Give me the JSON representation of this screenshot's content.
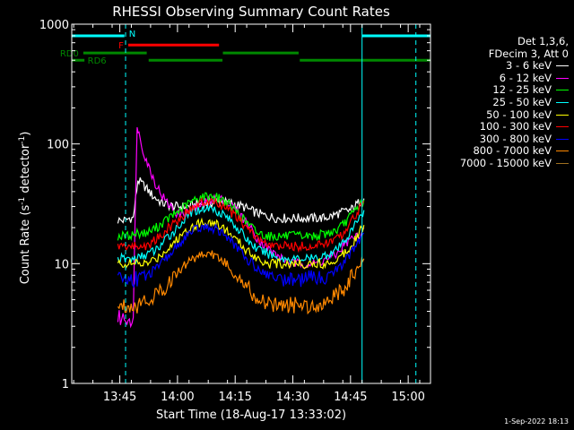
{
  "chart_data": {
    "type": "line",
    "title": "RHESSI Observing Summary Count Rates",
    "xlabel": "Start Time (18-Aug-17 13:33:02)",
    "ylabel_parts": [
      "Count Rate (s",
      "-1",
      " detector",
      "-1",
      ")"
    ],
    "y_scale": "log",
    "ylim": [
      1,
      1000
    ],
    "y_ticks": [
      1,
      10,
      100,
      1000
    ],
    "y_ticklabels": [
      "1",
      "10",
      "100",
      "1000"
    ],
    "x_range_min": [
      -0.5,
      92.8
    ],
    "x_ticks_min": [
      12,
      27,
      42,
      57,
      72,
      87
    ],
    "x_ticklabels": [
      "13:45",
      "14:00",
      "14:15",
      "14:30",
      "14:45",
      "15:00"
    ],
    "legend_header": [
      "Det 1,3,6,",
      "FDecim 3, Att 0"
    ],
    "series": [
      {
        "name": "3 - 6 keV",
        "color": "#ffffff",
        "x": [
          11.5,
          12.5,
          13.5,
          14.5,
          15.5,
          16.7,
          18.5,
          20.5,
          23,
          26,
          29,
          32,
          35,
          38,
          41,
          44,
          47,
          50,
          53,
          56,
          59,
          62,
          65,
          67,
          68.5,
          70,
          72,
          74,
          75.5
        ],
        "y": [
          23,
          23,
          23,
          24,
          24,
          50,
          44,
          37,
          32,
          30,
          30,
          31,
          32,
          33,
          32,
          30,
          27,
          25,
          24,
          24,
          24,
          24,
          24,
          25,
          26,
          27,
          28,
          32,
          35
        ]
      },
      {
        "name": "6 - 12 keV",
        "color": "#ff00ff",
        "x": [
          11.5,
          12.5,
          13.5,
          14.5,
          15.5,
          16.5,
          17,
          18,
          19.5,
          21.5,
          24,
          27,
          30,
          33,
          36,
          39,
          42,
          45,
          48,
          51,
          54,
          57,
          60,
          63,
          66,
          68.5,
          70,
          72,
          74,
          75.5
        ],
        "y": [
          3.5,
          3.5,
          3.5,
          3.5,
          3.5,
          150,
          120,
          90,
          65,
          45,
          33,
          26,
          27,
          31,
          35,
          34,
          29,
          22,
          16,
          13,
          11,
          10,
          10,
          10,
          11,
          12,
          14,
          16,
          17,
          20
        ]
      },
      {
        "name": "12 - 25 keV",
        "color": "#00ff00",
        "x": [
          11.5,
          14,
          16.5,
          19,
          21.5,
          24,
          27,
          30,
          33,
          36,
          39,
          42,
          45,
          48,
          51,
          54,
          57,
          60,
          63,
          66,
          68.5,
          70,
          72,
          74,
          75.5
        ],
        "y": [
          17,
          17,
          18,
          18,
          20,
          23,
          27,
          32,
          36,
          37,
          34,
          28,
          22,
          18,
          17,
          17,
          17,
          17,
          17,
          18,
          19,
          21,
          25,
          30,
          34
        ]
      },
      {
        "name": "25 - 50 keV",
        "color": "#00ffff",
        "x": [
          11.5,
          14,
          16.5,
          19,
          21.5,
          24,
          27,
          30,
          33,
          36,
          39,
          42,
          45,
          48,
          51,
          54,
          57,
          60,
          63,
          66,
          68.5,
          70,
          72,
          74,
          75.5
        ],
        "y": [
          11,
          11,
          11,
          12,
          13,
          16,
          20,
          26,
          29,
          29,
          26,
          21,
          16,
          13,
          12,
          11,
          11,
          11,
          11,
          12,
          13,
          15,
          18,
          24,
          28
        ]
      },
      {
        "name": "50 - 100 keV",
        "color": "#ffff00",
        "x": [
          11.5,
          14,
          16.5,
          19,
          21.5,
          24,
          27,
          30,
          33,
          36,
          39,
          42,
          45,
          48,
          51,
          54,
          57,
          60,
          63,
          66,
          68.5,
          70,
          72,
          74,
          75.5
        ],
        "y": [
          10,
          10,
          10,
          10,
          11,
          13,
          16,
          20,
          22,
          22,
          20,
          16,
          13,
          11,
          10,
          10,
          10,
          10,
          10,
          10,
          11,
          12,
          14,
          18,
          21
        ]
      },
      {
        "name": "100 - 300 keV",
        "color": "#ff0000",
        "x": [
          11.5,
          14,
          16.5,
          19,
          21.5,
          24,
          27,
          30,
          33,
          36,
          39,
          42,
          45,
          48,
          51,
          54,
          57,
          60,
          63,
          66,
          68.5,
          70,
          72,
          74,
          75.5
        ],
        "y": [
          14,
          14,
          14,
          14,
          16,
          19,
          23,
          28,
          32,
          33,
          30,
          25,
          20,
          16,
          14,
          14,
          14,
          14,
          14,
          15,
          16,
          18,
          22,
          28,
          33
        ]
      },
      {
        "name": "300 - 800 keV",
        "color": "#0000ff",
        "x": [
          11.5,
          14,
          16.5,
          19,
          21.5,
          24,
          27,
          30,
          33,
          36,
          39,
          42,
          45,
          48,
          51,
          54,
          57,
          60,
          63,
          66,
          68.5,
          70,
          72,
          74,
          75.5
        ],
        "y": [
          7.5,
          7.5,
          7.5,
          8,
          9,
          11,
          14,
          18,
          20,
          20,
          18,
          14,
          11,
          9,
          8,
          7.5,
          7.5,
          7.5,
          7.5,
          8,
          9,
          10,
          12,
          15,
          18
        ]
      },
      {
        "name": "800 - 7000 keV",
        "color": "#ff8800",
        "x": [
          11.5,
          14,
          16.5,
          19,
          21.5,
          24,
          27,
          30,
          33,
          36,
          39,
          42,
          45,
          48,
          51,
          54,
          57,
          60,
          63,
          66,
          68.5,
          70,
          72,
          74,
          75.5
        ],
        "y": [
          4.5,
          4.5,
          4.5,
          5,
          5.5,
          6.5,
          8.5,
          10.5,
          12,
          12,
          10.5,
          8,
          6.5,
          5,
          4.5,
          4.5,
          4.5,
          4.5,
          4.5,
          5,
          5.5,
          6,
          7.5,
          9,
          11
        ]
      },
      {
        "name": "7000 - 15000 keV",
        "color": "#a07020",
        "x": [],
        "y": []
      }
    ],
    "intervals": [
      {
        "label": "N",
        "color": "#00ffff",
        "y": 800,
        "spans": [
          [
            -0.5,
            13.2
          ],
          [
            75,
            92.8
          ]
        ]
      },
      {
        "label": "F",
        "color": "#ff0000",
        "y": 670,
        "spans": [
          [
            14.2,
            37.8
          ]
        ]
      },
      {
        "label": "RD0",
        "color": "#008800",
        "y": 575,
        "spans": [
          [
            2.5,
            19
          ]
        ]
      },
      {
        "label": "",
        "color": "#008800",
        "y": 575,
        "spans": [
          [
            38.8,
            58.5
          ]
        ]
      },
      {
        "label": "RD6",
        "color": "#008800",
        "y": 500,
        "spans": [
          [
            -0.5,
            2.8
          ],
          [
            19.5,
            38.7
          ],
          [
            58.8,
            92.8
          ]
        ]
      }
    ],
    "vertical_lines": [
      {
        "x": -0.5,
        "color": "#00ffff",
        "style": "solid"
      },
      {
        "x": 13.5,
        "color": "#00ffff",
        "style": "dashed"
      },
      {
        "x": 75,
        "color": "#00ffff",
        "style": "solid"
      },
      {
        "x": 89,
        "color": "#00ffff",
        "style": "dashed"
      }
    ]
  },
  "footer": {
    "date_stamp": "1-Sep-2022 18:13"
  }
}
